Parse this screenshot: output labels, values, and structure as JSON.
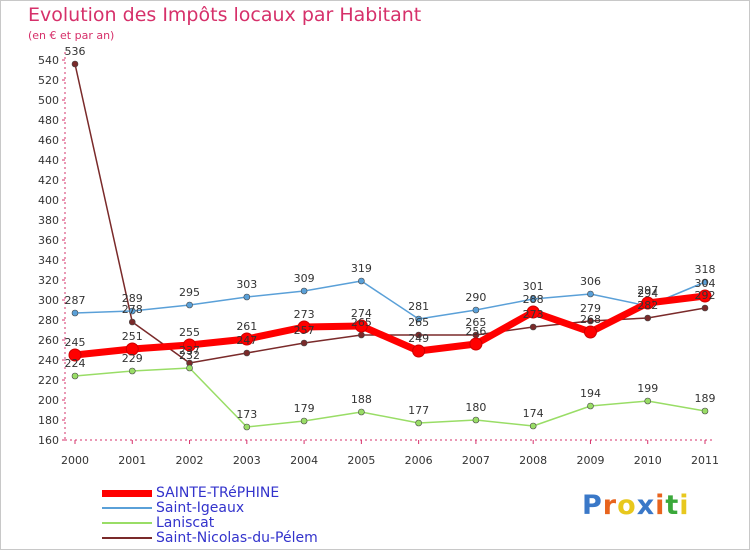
{
  "header": {
    "title": "Evolution des Impôts locaux par Habitant",
    "subtitle": "(en € et par an)"
  },
  "chart_data": {
    "type": "line",
    "title": "Evolution des Impôts locaux par Habitant",
    "ylabel": "(en € et par an)",
    "xlabel": "",
    "categories": [
      "2000",
      "2001",
      "2002",
      "2003",
      "2004",
      "2005",
      "2006",
      "2007",
      "2008",
      "2009",
      "2010",
      "2011"
    ],
    "ylim": [
      160,
      540
    ],
    "yticks": [
      160,
      180,
      200,
      220,
      240,
      260,
      280,
      300,
      320,
      340,
      360,
      380,
      400,
      420,
      440,
      460,
      480,
      500,
      520,
      540
    ],
    "grid": false,
    "legend_position": "bottom-left",
    "series": [
      {
        "name": "SAINTE-TRéPHINE",
        "color": "#ff0000",
        "values": [
          245,
          251,
          255,
          261,
          273,
          274,
          249,
          256,
          288,
          268,
          297,
          304
        ]
      },
      {
        "name": "Saint-Igeaux",
        "color": "#5aa0d8",
        "values": [
          287,
          289,
          295,
          303,
          309,
          319,
          281,
          290,
          301,
          306,
          294,
          318
        ]
      },
      {
        "name": "Laniscat",
        "color": "#99dd66",
        "values": [
          224,
          229,
          232,
          173,
          179,
          188,
          177,
          180,
          174,
          194,
          199,
          189
        ]
      },
      {
        "name": "Saint-Nicolas-du-Pélem",
        "color": "#7a2a2a",
        "values": [
          536,
          278,
          237,
          247,
          257,
          265,
          265,
          265,
          273,
          279,
          282,
          292
        ]
      }
    ]
  },
  "logo": {
    "text": "Proxiti",
    "letters": [
      "P",
      "r",
      "o",
      "x",
      "i",
      "t",
      "i"
    ],
    "colors": [
      "#3a78c8",
      "#e8641e",
      "#e8c81e",
      "#3a78c8",
      "#e8641e",
      "#3aa83a",
      "#e8c81e"
    ]
  }
}
